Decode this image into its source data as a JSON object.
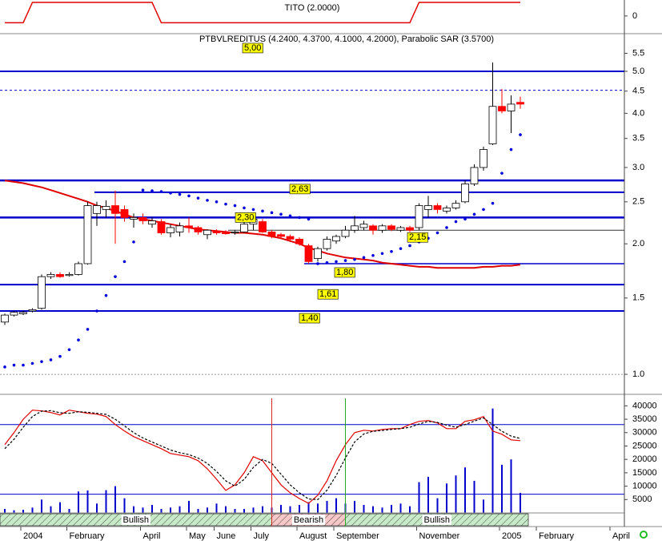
{
  "chart_data": [
    {
      "type": "line",
      "title": "TITO (2.0000)",
      "color": "#e00000",
      "ylim": [
        -2.6,
        2.35
      ],
      "yticks": [
        0
      ],
      "values": [
        -1,
        -1,
        -1,
        2,
        2,
        2,
        2,
        2,
        2,
        2,
        2,
        2,
        2,
        2,
        2,
        2,
        2,
        -1,
        -1,
        -1,
        -1,
        -1,
        -1,
        -1,
        -1,
        -1,
        -1,
        -1,
        -1,
        -1,
        -1,
        -1,
        -1,
        -1,
        -1,
        -1,
        -1,
        -1,
        -1,
        -1,
        -1,
        -1,
        -1,
        -1,
        -1,
        2,
        2,
        2,
        2,
        2,
        2,
        2,
        2,
        2,
        2,
        2,
        2
      ]
    },
    {
      "type": "candlestick",
      "title": "PTBVLREDITUS (4.2400, 4.3700, 4.1000, 4.2000), Parabolic SAR (3.5700)",
      "log": true,
      "ylim": [
        0.907,
        6.08
      ],
      "yticks": [
        {
          "value": 1.0,
          "label": "1.0"
        },
        {
          "value": 1.5,
          "label": "1.5"
        },
        {
          "value": 2.0,
          "label": "2.0"
        },
        {
          "value": 2.5,
          "label": "2.5"
        },
        {
          "value": 3.0,
          "label": "3.0"
        },
        {
          "value": 3.5,
          "label": "3.5"
        },
        {
          "value": 4.0,
          "label": "4.0"
        },
        {
          "value": 4.5,
          "label": "4.5"
        },
        {
          "value": 5.0,
          "label": "5.0"
        },
        {
          "value": 5.5,
          "label": "5.5"
        }
      ],
      "categories": [
        null,
        null,
        "2004",
        null,
        null,
        null,
        null,
        "February",
        null,
        null,
        null,
        null,
        null,
        null,
        null,
        "April",
        null,
        null,
        null,
        null,
        "May",
        null,
        null,
        "June",
        null,
        null,
        null,
        "July",
        null,
        null,
        null,
        null,
        "August",
        null,
        null,
        null,
        "September",
        null,
        null,
        null,
        null,
        null,
        null,
        null,
        null,
        "November",
        null,
        null,
        null,
        null,
        null,
        null,
        null,
        null,
        "2005",
        null,
        null,
        null,
        "February",
        null,
        null,
        null,
        null,
        null,
        null,
        null,
        "April",
        null
      ],
      "open": [
        1.32,
        1.37,
        1.38,
        1.4,
        1.42,
        1.68,
        1.7,
        1.69,
        1.7,
        1.8,
        2.35,
        2.4,
        2.45,
        2.4,
        2.28,
        2.3,
        2.22,
        2.25,
        2.12,
        2.13,
        2.2,
        2.18,
        2.1,
        2.14,
        2.12,
        2.12,
        2.13,
        2.22,
        2.25,
        2.13,
        2.1,
        2.08,
        2.05,
        1.98,
        1.85,
        1.95,
        2.03,
        2.08,
        2.15,
        2.18,
        2.2,
        2.15,
        2.2,
        2.15,
        2.18,
        2.18,
        2.4,
        2.45,
        2.38,
        2.42,
        2.5,
        2.75,
        3.0,
        3.4,
        4.15,
        4.05,
        4.24,
        null,
        null,
        null,
        null,
        null,
        null,
        null,
        null,
        null,
        null,
        null
      ],
      "high": [
        1.38,
        1.4,
        1.4,
        1.42,
        1.7,
        1.72,
        1.72,
        1.72,
        1.82,
        2.5,
        2.5,
        2.52,
        2.65,
        2.45,
        2.35,
        2.35,
        2.3,
        2.28,
        2.22,
        2.24,
        2.3,
        2.2,
        2.16,
        2.16,
        2.15,
        2.15,
        2.28,
        2.32,
        2.28,
        2.15,
        2.12,
        2.1,
        2.07,
        2.0,
        1.97,
        2.08,
        2.1,
        2.2,
        2.32,
        2.26,
        2.22,
        2.22,
        2.22,
        2.2,
        2.2,
        2.48,
        2.58,
        2.48,
        2.45,
        2.52,
        2.8,
        3.05,
        3.35,
        5.24,
        4.55,
        4.4,
        4.37,
        null,
        null,
        null,
        null,
        null,
        null,
        null,
        null,
        null,
        null,
        null
      ],
      "low": [
        1.3,
        1.36,
        1.37,
        1.39,
        1.41,
        1.66,
        1.67,
        1.68,
        1.69,
        1.79,
        2.2,
        2.3,
        2.0,
        2.25,
        2.18,
        2.22,
        2.18,
        2.1,
        2.07,
        2.08,
        2.12,
        2.1,
        2.05,
        2.1,
        2.1,
        2.1,
        2.12,
        2.15,
        2.12,
        2.06,
        2.05,
        2.02,
        1.98,
        1.8,
        1.82,
        1.93,
        2.0,
        2.06,
        2.12,
        2.15,
        2.1,
        2.12,
        2.14,
        2.13,
        2.13,
        2.15,
        2.3,
        2.35,
        2.35,
        2.4,
        2.48,
        2.72,
        2.95,
        3.38,
        4.0,
        3.6,
        4.1,
        null,
        null,
        null,
        null,
        null,
        null,
        null,
        null,
        null,
        null,
        null
      ],
      "close": [
        1.37,
        1.39,
        1.39,
        1.41,
        1.68,
        1.7,
        1.68,
        1.7,
        1.8,
        2.45,
        2.45,
        2.44,
        2.35,
        2.3,
        2.3,
        2.26,
        2.26,
        2.12,
        2.18,
        2.2,
        2.18,
        2.13,
        2.15,
        2.12,
        2.11,
        2.13,
        2.22,
        2.28,
        2.13,
        2.08,
        2.08,
        2.05,
        2.0,
        1.82,
        1.95,
        2.05,
        2.08,
        2.15,
        2.2,
        2.22,
        2.15,
        2.2,
        2.16,
        2.18,
        2.15,
        2.45,
        2.45,
        2.4,
        2.42,
        2.48,
        2.75,
        3.0,
        3.3,
        4.15,
        4.05,
        4.2,
        4.2,
        null,
        null,
        null,
        null,
        null,
        null,
        null,
        null,
        null,
        null,
        null
      ],
      "up_color": "#ffffff",
      "down_color": "#ff0000",
      "sar": [
        1.04,
        1.05,
        1.05,
        1.06,
        1.07,
        1.08,
        1.1,
        1.14,
        1.2,
        1.27,
        1.4,
        1.52,
        1.68,
        1.82,
        2.02,
        2.66,
        2.65,
        2.64,
        2.62,
        2.6,
        2.58,
        2.55,
        2.52,
        2.5,
        2.47,
        2.45,
        2.42,
        2.4,
        2.38,
        2.36,
        2.34,
        2.32,
        2.3,
        2.28,
        1.8,
        1.81,
        1.82,
        1.83,
        1.84,
        1.86,
        1.88,
        1.9,
        1.92,
        1.95,
        1.98,
        2.02,
        2.06,
        2.12,
        2.18,
        2.25,
        2.28,
        2.34,
        2.4,
        2.48,
        2.91,
        3.3,
        3.57,
        null,
        null,
        null,
        null,
        null,
        null,
        null,
        null,
        null,
        null,
        null
      ],
      "sar_color": "#0000dd",
      "ma": [
        2.8,
        2.78,
        2.76,
        2.73,
        2.7,
        2.66,
        2.62,
        2.58,
        2.54,
        2.5,
        2.45,
        2.42,
        2.38,
        2.34,
        2.3,
        2.28,
        2.26,
        2.24,
        2.22,
        2.2,
        2.18,
        2.16,
        2.15,
        2.14,
        2.13,
        2.12,
        2.12,
        2.11,
        2.1,
        2.08,
        2.06,
        2.03,
        2.0,
        1.96,
        1.93,
        1.9,
        1.88,
        1.86,
        1.85,
        1.84,
        1.83,
        1.81,
        1.8,
        1.79,
        1.78,
        1.77,
        1.77,
        1.76,
        1.76,
        1.76,
        1.76,
        1.76,
        1.77,
        1.77,
        1.78,
        1.78,
        1.79,
        null,
        null,
        null,
        null,
        null,
        null,
        null,
        null,
        null,
        null,
        null
      ],
      "ma_color": "#e00000",
      "levels": [
        {
          "value": 5.0,
          "label": "5,00"
        },
        {
          "value": 2.8
        },
        {
          "value": 2.63,
          "label": "2,63"
        },
        {
          "value": 2.3,
          "label": "2,30"
        },
        {
          "value": 2.15,
          "label": "2,15"
        },
        {
          "value": 1.8,
          "label": "1,80"
        },
        {
          "value": 1.61,
          "label": "1,61"
        },
        {
          "value": 1.4,
          "label": "1,40"
        }
      ],
      "level_color": "#0000cc",
      "label_box_color": "#ffff00",
      "dashed_levels": [
        4.52
      ],
      "grid_lines": [
        1.0
      ]
    },
    {
      "type": "volume",
      "ylim": [
        0,
        42800
      ],
      "yticks": [
        5000,
        10000,
        15000,
        20000,
        25000,
        30000,
        35000,
        40000
      ],
      "values": [
        1500,
        1000,
        1200,
        2000,
        5000,
        2500,
        4000,
        1500,
        8000,
        8400,
        3500,
        8500,
        10000,
        5500,
        2500,
        2000,
        3000,
        1500,
        2000,
        2500,
        4500,
        1500,
        2000,
        3500,
        2500,
        1500,
        1500,
        2000,
        2500,
        2000,
        3000,
        2500,
        3000,
        4000,
        3500,
        4500,
        5500,
        3500,
        4500,
        3000,
        2500,
        2000,
        3000,
        3500,
        2500,
        11500,
        13500,
        5500,
        11000,
        14000,
        17000,
        12000,
        5000,
        39000,
        18000,
        20000,
        7500
      ],
      "color": "#0000cc",
      "series": [
        {
          "color": "#e00000",
          "values": [
            25500,
            30000,
            35000,
            38400,
            38100,
            37500,
            36600,
            38400,
            37800,
            37200,
            36900,
            36000,
            33000,
            30600,
            28500,
            27000,
            25500,
            24000,
            22200,
            21600,
            21000,
            19500,
            16500,
            12600,
            8400,
            10500,
            15000,
            21000,
            19500,
            15000,
            10500,
            7500,
            5400,
            3600,
            6600,
            12000,
            19500,
            25500,
            30000,
            30900,
            30600,
            31200,
            31500,
            31500,
            33000,
            34200,
            34500,
            33600,
            31500,
            31500,
            34200,
            34800,
            36000,
            30600,
            29400,
            27300,
            27000
          ]
        },
        {
          "color": "#000000",
          "dashed": true,
          "values": [
            24000,
            27500,
            32000,
            36000,
            38000,
            38200,
            37400,
            37200,
            37800,
            37600,
            37200,
            36800,
            35000,
            32500,
            30000,
            28000,
            26500,
            25000,
            23500,
            22500,
            21800,
            20500,
            18500,
            15500,
            12000,
            10000,
            12500,
            17000,
            20000,
            18500,
            14500,
            10500,
            7500,
            5200,
            5000,
            8500,
            14000,
            20500,
            26500,
            29500,
            30500,
            30800,
            31200,
            31500,
            32000,
            33200,
            34200,
            33800,
            32800,
            32000,
            33000,
            34300,
            35500,
            33000,
            30500,
            28700,
            27800
          ]
        }
      ],
      "hlines": [
        33000,
        7000
      ],
      "hline_color": "#0000cc",
      "regime": [
        "Bullish",
        "Bullish",
        "Bullish",
        "Bullish",
        "Bullish",
        "Bullish",
        "Bullish",
        "Bullish",
        "Bullish",
        "Bullish",
        "Bullish",
        "Bullish",
        "Bullish",
        "Bullish",
        "Bullish",
        "Bullish",
        "Bullish",
        "Bullish",
        "Bullish",
        "Bullish",
        "Bullish",
        "Bullish",
        "Bullish",
        "Bullish",
        "Bullish",
        "Bullish",
        "Bullish",
        "Bullish",
        "Bullish",
        "Bearish",
        "Bearish",
        "Bearish",
        "Bearish",
        "Bearish",
        "Bearish",
        "Bearish",
        "Bearish",
        "Bullish",
        "Bullish",
        "Bullish",
        "Bullish",
        "Bullish",
        "Bullish",
        "Bullish",
        "Bullish",
        "Bullish",
        "Bullish",
        "Bullish",
        "Bullish",
        "Bullish",
        "Bullish",
        "Bullish",
        "Bullish",
        "Bullish",
        "Bullish",
        "Bullish",
        "Bullish"
      ],
      "regime_colors": {
        "Bullish": "#22aa22",
        "Bearish": "#dd2222"
      }
    }
  ]
}
